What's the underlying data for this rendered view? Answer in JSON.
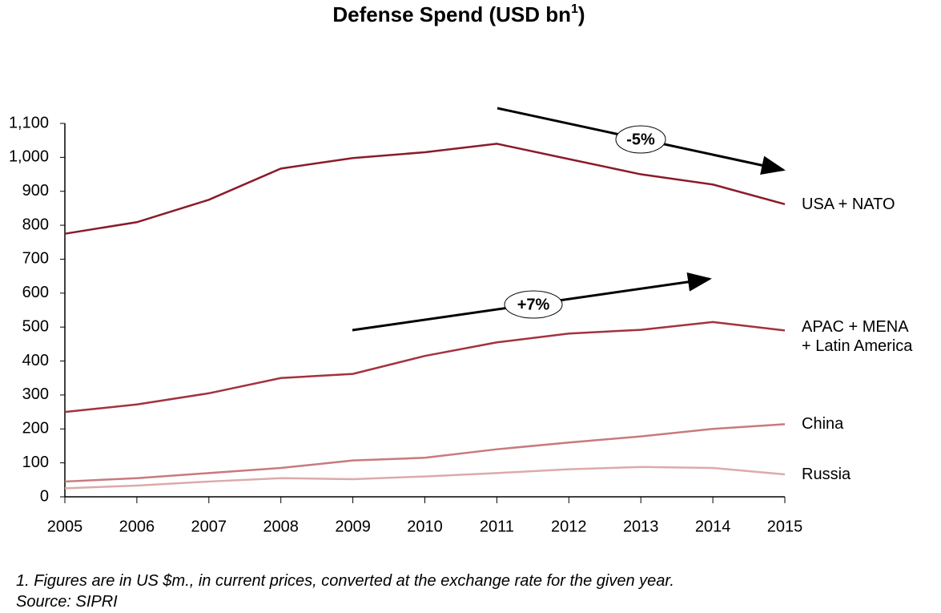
{
  "chart_data": {
    "type": "line",
    "title_parts": [
      "Defense Spend (USD bn",
      "1",
      ")"
    ],
    "x": [
      2005,
      2006,
      2007,
      2008,
      2009,
      2010,
      2011,
      2012,
      2013,
      2014,
      2015
    ],
    "series": [
      {
        "name": "USA + NATO",
        "color": "#8b1a2b",
        "values": [
          775,
          809,
          875,
          967,
          998,
          1015,
          1040,
          995,
          950,
          920,
          862
        ]
      },
      {
        "name": "APAC + MENA + Latin America",
        "color": "#a3323e",
        "values": [
          250,
          272,
          305,
          350,
          362,
          415,
          455,
          481,
          492,
          515,
          490
        ]
      },
      {
        "name": "China",
        "color": "#c87a7e",
        "values": [
          45,
          55,
          70,
          85,
          107,
          115,
          140,
          160,
          178,
          200,
          214
        ]
      },
      {
        "name": "Russia",
        "color": "#dcaaaa",
        "values": [
          25,
          33,
          45,
          55,
          52,
          60,
          70,
          81,
          88,
          85,
          66
        ]
      }
    ],
    "xlim": [
      2005,
      2015
    ],
    "xticks": [
      2005,
      2006,
      2007,
      2008,
      2009,
      2010,
      2011,
      2012,
      2013,
      2014,
      2015
    ],
    "ylim": [
      0,
      1100
    ],
    "yticks": [
      0,
      100,
      200,
      300,
      400,
      500,
      600,
      700,
      800,
      900,
      {
        "value": 1000,
        "label": "1,000"
      },
      {
        "value": 1100,
        "label": "1,100"
      }
    ],
    "grid": false,
    "annotations": [
      "-5%",
      "+7%"
    ],
    "footnotes": [
      "1. Figures are in US $m., in current prices, converted at the exchange rate for the given year.",
      "Source: SIPRI"
    ]
  }
}
